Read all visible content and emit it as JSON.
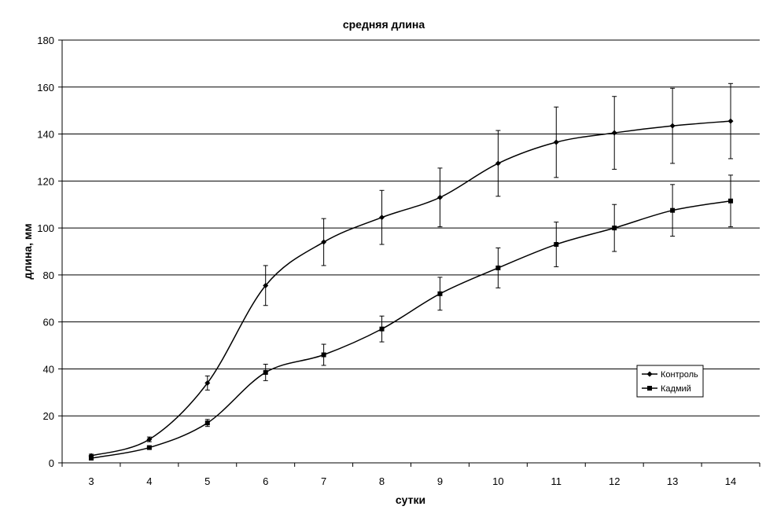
{
  "chart_data": {
    "type": "line",
    "title": "средняя длина",
    "xlabel": "сутки",
    "ylabel": "длина, мм",
    "x": [
      3,
      4,
      5,
      6,
      7,
      8,
      9,
      10,
      11,
      12,
      13,
      14
    ],
    "ylim": [
      0,
      180
    ],
    "yticks": [
      0,
      20,
      40,
      60,
      80,
      100,
      120,
      140,
      160,
      180
    ],
    "grid": true,
    "legend_position": "right",
    "series": [
      {
        "name": "Контроль",
        "marker": "diamond",
        "color": "#000000",
        "values": [
          3,
          10,
          34,
          75.5,
          94,
          104.5,
          113,
          127.5,
          136.5,
          140.5,
          143.5,
          145.5
        ],
        "error": [
          0.7,
          1,
          3,
          8.5,
          10,
          11.5,
          12.5,
          14,
          15,
          15.5,
          16,
          16
        ]
      },
      {
        "name": "Кадмий",
        "marker": "square",
        "color": "#000000",
        "values": [
          2,
          6.5,
          17,
          38.5,
          46,
          57,
          72,
          83,
          93,
          100,
          107.5,
          111.5
        ],
        "error": [
          0.5,
          0.6,
          1.5,
          3.5,
          4.5,
          5.5,
          7,
          8.5,
          9.5,
          10,
          11,
          11
        ]
      }
    ]
  }
}
